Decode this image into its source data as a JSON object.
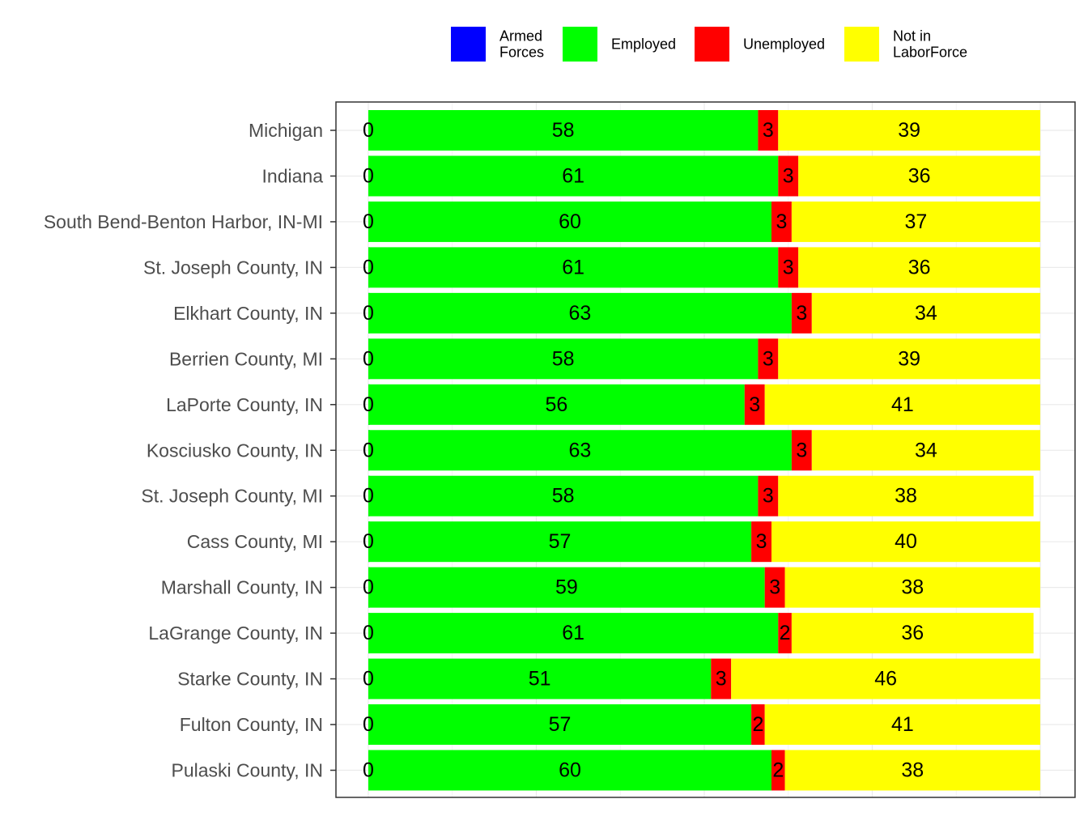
{
  "chart_data": {
    "type": "bar",
    "orientation": "horizontal",
    "stacked": true,
    "normalized_percent": true,
    "title": "",
    "xlabel": "",
    "ylabel": "",
    "xlim": [
      0,
      100
    ],
    "grid": true,
    "legend_position": "top",
    "categories": [
      "Michigan",
      "Indiana",
      "South Bend-Benton Harbor, IN-MI",
      "St. Joseph County, IN",
      "Elkhart County, IN",
      "Berrien County, MI",
      "LaPorte County, IN",
      "Kosciusko County, IN",
      "St. Joseph County, MI",
      "Cass County, MI",
      "Marshall County, IN",
      "LaGrange County, IN",
      "Starke County, IN",
      "Fulton County, IN",
      "Pulaski County, IN"
    ],
    "series": [
      {
        "name": "Armed Forces",
        "legend_lines": [
          "Armed",
          "Forces"
        ],
        "color": "#0000ff",
        "values": [
          0,
          0,
          0,
          0,
          0,
          0,
          0,
          0,
          0,
          0,
          0,
          0,
          0,
          0,
          0
        ]
      },
      {
        "name": "Employed",
        "legend_lines": [
          "Employed"
        ],
        "color": "#00ff00",
        "values": [
          58,
          61,
          60,
          61,
          63,
          58,
          56,
          63,
          58,
          57,
          59,
          61,
          51,
          57,
          60
        ]
      },
      {
        "name": "Unemployed",
        "legend_lines": [
          "Unemployed"
        ],
        "color": "#ff0000",
        "values": [
          3,
          3,
          3,
          3,
          3,
          3,
          3,
          3,
          3,
          3,
          3,
          2,
          3,
          2,
          2
        ]
      },
      {
        "name": "Not in LaborForce",
        "legend_lines": [
          "Not in",
          "LaborForce"
        ],
        "color": "#ffff00",
        "values": [
          39,
          36,
          37,
          36,
          34,
          39,
          41,
          34,
          38,
          40,
          38,
          36,
          46,
          41,
          38
        ]
      }
    ]
  }
}
